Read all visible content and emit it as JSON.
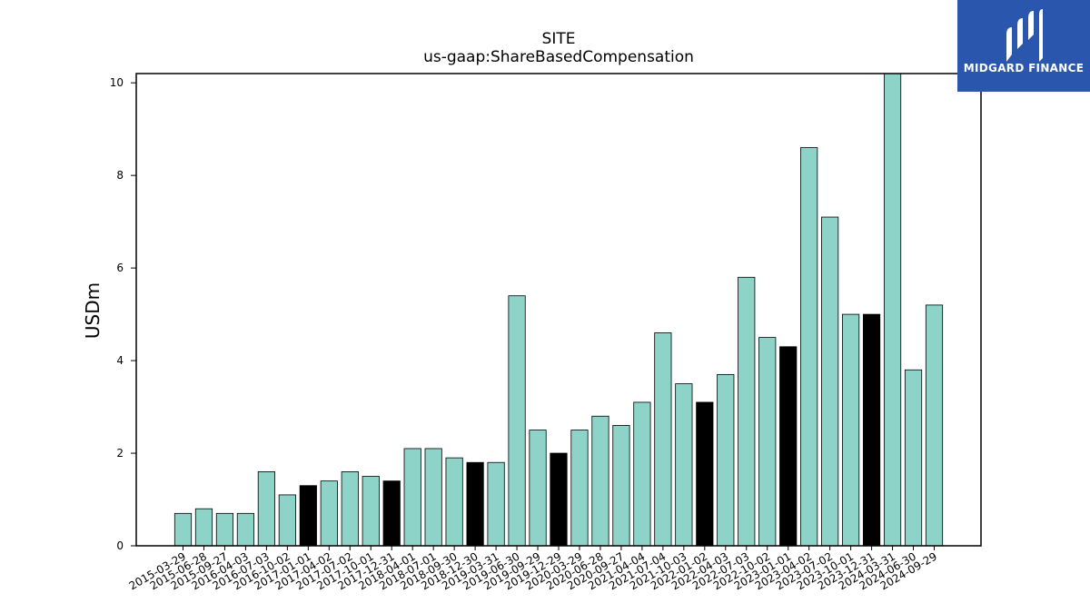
{
  "chart_data": {
    "type": "bar",
    "title": "SITE",
    "subtitle": "us-gaap:ShareBasedCompensation",
    "xlabel": "",
    "ylabel": "USDm",
    "ylim": [
      0,
      10.2
    ],
    "yticks": [
      0,
      2,
      4,
      6,
      8,
      10
    ],
    "grid": false,
    "categories": [
      "2015-03-29",
      "2015-06-28",
      "2015-09-27",
      "2016-04-03",
      "2016-07-03",
      "2016-10-02",
      "2017-01-01",
      "2017-04-02",
      "2017-07-02",
      "2017-10-01",
      "2017-12-31",
      "2018-04-01",
      "2018-07-01",
      "2018-09-30",
      "2018-12-30",
      "2019-03-31",
      "2019-06-30",
      "2019-09-29",
      "2019-12-29",
      "2020-03-29",
      "2020-06-28",
      "2020-09-27",
      "2021-04-04",
      "2021-07-04",
      "2021-10-03",
      "2022-01-02",
      "2022-04-03",
      "2022-07-03",
      "2022-10-02",
      "2023-01-01",
      "2023-04-02",
      "2023-07-02",
      "2023-10-01",
      "2023-12-31",
      "2024-03-31",
      "2024-06-30",
      "2024-09-29"
    ],
    "values": [
      0.7,
      0.8,
      0.7,
      0.7,
      1.6,
      1.1,
      1.3,
      1.4,
      1.6,
      1.5,
      1.4,
      2.1,
      2.1,
      1.9,
      1.8,
      1.8,
      5.4,
      2.5,
      2.0,
      2.5,
      2.8,
      2.6,
      3.1,
      4.6,
      3.5,
      3.1,
      3.7,
      5.8,
      4.5,
      4.3,
      8.6,
      7.1,
      5.0,
      5.0,
      10.2,
      3.8,
      5.2
    ],
    "highlight": [
      false,
      false,
      false,
      false,
      false,
      false,
      true,
      false,
      false,
      false,
      true,
      false,
      false,
      false,
      true,
      false,
      false,
      false,
      true,
      false,
      false,
      false,
      false,
      false,
      false,
      true,
      false,
      false,
      false,
      true,
      false,
      false,
      false,
      true,
      false,
      false,
      false
    ],
    "colors": {
      "bar": "#8dd3c7",
      "highlight": "#000000",
      "edge": "#000000"
    }
  },
  "logo": {
    "text": "MIDGARD FINANCE",
    "background": "#2a57ad"
  }
}
